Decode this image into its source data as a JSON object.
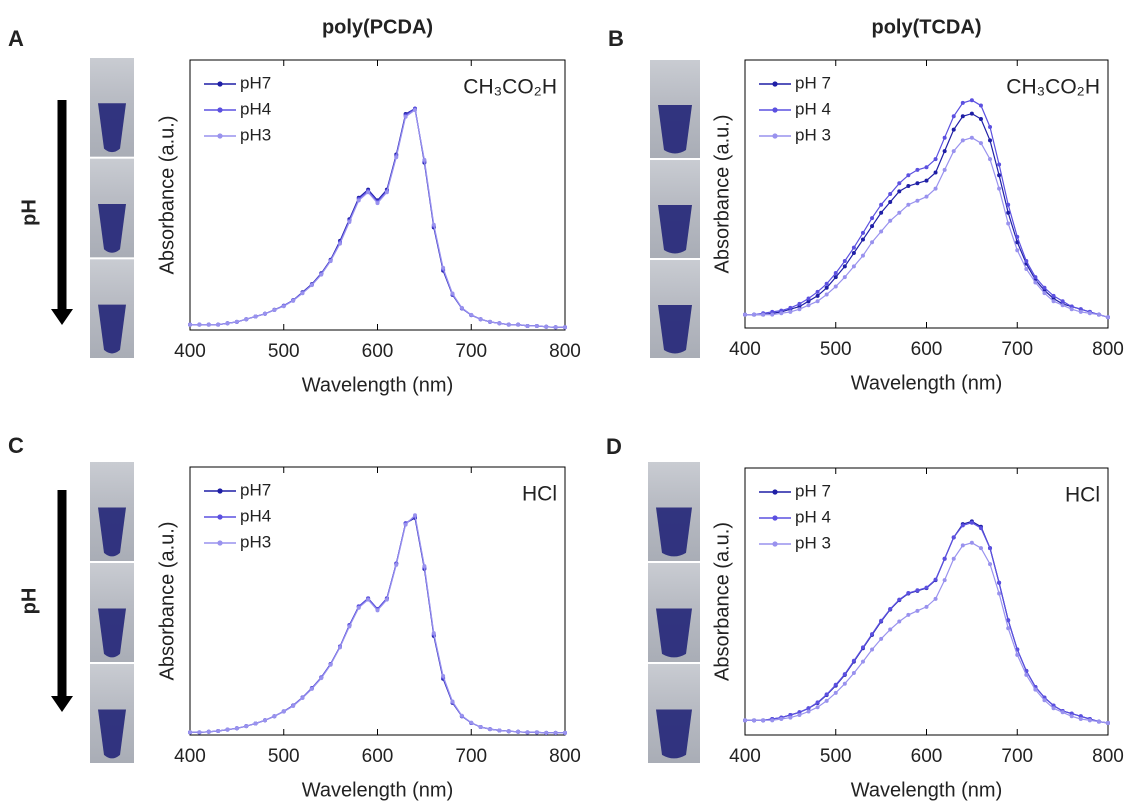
{
  "chart_data": [
    {
      "type": "line",
      "panel": "A",
      "title": "poly(PCDA)",
      "ph_label": "pH",
      "annotation": "CH₃CO₂H",
      "xlabel": "Wavelength (nm)",
      "ylabel": "Absorbance (a.u.)",
      "x": [
        400,
        410,
        420,
        430,
        440,
        450,
        460,
        470,
        480,
        490,
        500,
        510,
        520,
        530,
        540,
        550,
        560,
        570,
        580,
        590,
        600,
        610,
        620,
        630,
        640,
        650,
        660,
        670,
        680,
        690,
        700,
        710,
        720,
        730,
        740,
        750,
        760,
        770,
        780,
        790,
        800
      ],
      "xlim": [
        400,
        800
      ],
      "xticks": [
        400,
        500,
        600,
        700,
        800
      ],
      "ylim": [
        0,
        1
      ],
      "series": [
        {
          "name": "pH7",
          "color": "#1f1fa6",
          "values": [
            0.02,
            0.02,
            0.02,
            0.02,
            0.025,
            0.03,
            0.04,
            0.05,
            0.06,
            0.075,
            0.09,
            0.11,
            0.14,
            0.17,
            0.21,
            0.26,
            0.33,
            0.41,
            0.49,
            0.52,
            0.48,
            0.52,
            0.65,
            0.8,
            0.82,
            0.62,
            0.38,
            0.22,
            0.13,
            0.08,
            0.055,
            0.04,
            0.03,
            0.025,
            0.02,
            0.02,
            0.015,
            0.015,
            0.012,
            0.01,
            0.01
          ]
        },
        {
          "name": "pH4",
          "color": "#5b50e0",
          "values": [
            0.02,
            0.02,
            0.02,
            0.02,
            0.025,
            0.03,
            0.04,
            0.05,
            0.06,
            0.074,
            0.09,
            0.11,
            0.138,
            0.168,
            0.208,
            0.258,
            0.325,
            0.405,
            0.485,
            0.515,
            0.475,
            0.515,
            0.645,
            0.795,
            0.82,
            0.625,
            0.385,
            0.225,
            0.132,
            0.08,
            0.055,
            0.04,
            0.03,
            0.025,
            0.02,
            0.02,
            0.015,
            0.015,
            0.012,
            0.01,
            0.01
          ]
        },
        {
          "name": "pH3",
          "color": "#9992ee",
          "values": [
            0.02,
            0.02,
            0.02,
            0.02,
            0.025,
            0.03,
            0.04,
            0.05,
            0.06,
            0.074,
            0.088,
            0.108,
            0.136,
            0.166,
            0.205,
            0.255,
            0.32,
            0.4,
            0.48,
            0.51,
            0.47,
            0.51,
            0.64,
            0.79,
            0.815,
            0.63,
            0.39,
            0.23,
            0.135,
            0.082,
            0.056,
            0.04,
            0.03,
            0.025,
            0.02,
            0.02,
            0.015,
            0.015,
            0.012,
            0.01,
            0.01
          ]
        }
      ]
    },
    {
      "type": "line",
      "panel": "B",
      "title": "poly(TCDA)",
      "annotation": "CH₃CO₂H",
      "xlabel": "Wavelength (nm)",
      "ylabel": "Absorbance (a.u.)",
      "x": [
        400,
        410,
        420,
        430,
        440,
        450,
        460,
        470,
        480,
        490,
        500,
        510,
        520,
        530,
        540,
        550,
        560,
        570,
        580,
        590,
        600,
        610,
        620,
        630,
        640,
        650,
        660,
        670,
        680,
        690,
        700,
        710,
        720,
        730,
        740,
        750,
        760,
        770,
        780,
        790,
        800
      ],
      "xlim": [
        400,
        800
      ],
      "xticks": [
        400,
        500,
        600,
        700,
        800
      ],
      "ylim": [
        0,
        1
      ],
      "series": [
        {
          "name": "pH 7",
          "color": "#1f1fa6",
          "values": [
            0.05,
            0.05,
            0.05,
            0.055,
            0.06,
            0.07,
            0.08,
            0.1,
            0.12,
            0.15,
            0.19,
            0.23,
            0.28,
            0.33,
            0.38,
            0.43,
            0.47,
            0.51,
            0.53,
            0.54,
            0.55,
            0.58,
            0.66,
            0.74,
            0.79,
            0.8,
            0.78,
            0.7,
            0.57,
            0.43,
            0.32,
            0.24,
            0.18,
            0.14,
            0.11,
            0.09,
            0.08,
            0.07,
            0.06,
            0.05,
            0.04
          ]
        },
        {
          "name": "pH 4",
          "color": "#5b50e0",
          "values": [
            0.05,
            0.05,
            0.055,
            0.06,
            0.065,
            0.075,
            0.09,
            0.11,
            0.135,
            0.165,
            0.205,
            0.25,
            0.3,
            0.355,
            0.41,
            0.46,
            0.5,
            0.54,
            0.57,
            0.59,
            0.6,
            0.63,
            0.71,
            0.79,
            0.84,
            0.85,
            0.83,
            0.75,
            0.61,
            0.46,
            0.34,
            0.25,
            0.19,
            0.15,
            0.12,
            0.1,
            0.08,
            0.07,
            0.06,
            0.05,
            0.04
          ]
        },
        {
          "name": "pH 3",
          "color": "#9992ee",
          "values": [
            0.05,
            0.05,
            0.05,
            0.05,
            0.055,
            0.06,
            0.07,
            0.085,
            0.1,
            0.125,
            0.155,
            0.19,
            0.23,
            0.27,
            0.32,
            0.36,
            0.4,
            0.43,
            0.46,
            0.475,
            0.49,
            0.52,
            0.59,
            0.66,
            0.7,
            0.71,
            0.69,
            0.63,
            0.52,
            0.39,
            0.29,
            0.22,
            0.17,
            0.13,
            0.1,
            0.085,
            0.07,
            0.06,
            0.055,
            0.05,
            0.04
          ]
        }
      ]
    },
    {
      "type": "line",
      "panel": "C",
      "ph_label": "pH",
      "annotation": "HCl",
      "xlabel": "Wavelength (nm)",
      "ylabel": "Absorbance (a.u.)",
      "x": [
        400,
        410,
        420,
        430,
        440,
        450,
        460,
        470,
        480,
        490,
        500,
        510,
        520,
        530,
        540,
        550,
        560,
        570,
        580,
        590,
        600,
        610,
        620,
        630,
        640,
        650,
        660,
        670,
        680,
        690,
        700,
        710,
        720,
        730,
        740,
        750,
        760,
        770,
        780,
        790,
        800
      ],
      "xlim": [
        400,
        800
      ],
      "xticks": [
        400,
        500,
        600,
        700,
        800
      ],
      "ylim": [
        0,
        1
      ],
      "series": [
        {
          "name": "pH7",
          "color": "#1f1fa6",
          "values": [
            0.01,
            0.01,
            0.012,
            0.015,
            0.02,
            0.025,
            0.033,
            0.043,
            0.055,
            0.07,
            0.088,
            0.11,
            0.14,
            0.175,
            0.215,
            0.265,
            0.33,
            0.41,
            0.48,
            0.51,
            0.47,
            0.51,
            0.64,
            0.79,
            0.81,
            0.62,
            0.37,
            0.21,
            0.12,
            0.07,
            0.045,
            0.03,
            0.022,
            0.017,
            0.014,
            0.012,
            0.01,
            0.01,
            0.008,
            0.008,
            0.008
          ]
        },
        {
          "name": "pH4",
          "color": "#5b50e0",
          "values": [
            0.01,
            0.01,
            0.012,
            0.015,
            0.02,
            0.025,
            0.033,
            0.043,
            0.055,
            0.07,
            0.088,
            0.11,
            0.14,
            0.175,
            0.215,
            0.265,
            0.33,
            0.41,
            0.48,
            0.51,
            0.47,
            0.51,
            0.64,
            0.79,
            0.815,
            0.625,
            0.375,
            0.215,
            0.122,
            0.07,
            0.045,
            0.03,
            0.022,
            0.017,
            0.014,
            0.012,
            0.01,
            0.01,
            0.008,
            0.008,
            0.008
          ]
        },
        {
          "name": "pH3",
          "color": "#9992ee",
          "values": [
            0.01,
            0.01,
            0.012,
            0.015,
            0.02,
            0.025,
            0.033,
            0.043,
            0.055,
            0.07,
            0.087,
            0.108,
            0.138,
            0.172,
            0.212,
            0.262,
            0.327,
            0.405,
            0.475,
            0.505,
            0.465,
            0.505,
            0.635,
            0.785,
            0.82,
            0.63,
            0.38,
            0.22,
            0.125,
            0.072,
            0.046,
            0.03,
            0.022,
            0.017,
            0.014,
            0.012,
            0.01,
            0.01,
            0.008,
            0.008,
            0.008
          ]
        }
      ]
    },
    {
      "type": "line",
      "panel": "D",
      "annotation": "HCl",
      "xlabel": "Wavelength (nm)",
      "ylabel": "Absorbance (a.u.)",
      "x": [
        400,
        410,
        420,
        430,
        440,
        450,
        460,
        470,
        480,
        490,
        500,
        510,
        520,
        530,
        540,
        550,
        560,
        570,
        580,
        590,
        600,
        610,
        620,
        630,
        640,
        650,
        660,
        670,
        680,
        690,
        700,
        710,
        720,
        730,
        740,
        750,
        760,
        770,
        780,
        790,
        800
      ],
      "xlim": [
        400,
        800
      ],
      "xticks": [
        400,
        500,
        600,
        700,
        800
      ],
      "ylim": [
        0,
        1
      ],
      "series": [
        {
          "name": "pH 7",
          "color": "#1f1fa6",
          "values": [
            0.055,
            0.055,
            0.055,
            0.06,
            0.065,
            0.075,
            0.085,
            0.1,
            0.12,
            0.15,
            0.185,
            0.225,
            0.275,
            0.325,
            0.375,
            0.425,
            0.47,
            0.505,
            0.53,
            0.54,
            0.55,
            0.58,
            0.66,
            0.74,
            0.79,
            0.8,
            0.78,
            0.7,
            0.57,
            0.43,
            0.32,
            0.24,
            0.18,
            0.14,
            0.11,
            0.09,
            0.08,
            0.07,
            0.06,
            0.05,
            0.045
          ]
        },
        {
          "name": "pH 4",
          "color": "#5b50e0",
          "values": [
            0.055,
            0.055,
            0.055,
            0.06,
            0.065,
            0.075,
            0.085,
            0.1,
            0.122,
            0.152,
            0.188,
            0.228,
            0.278,
            0.328,
            0.378,
            0.428,
            0.472,
            0.507,
            0.532,
            0.542,
            0.552,
            0.582,
            0.66,
            0.74,
            0.785,
            0.795,
            0.775,
            0.7,
            0.57,
            0.43,
            0.32,
            0.24,
            0.18,
            0.14,
            0.11,
            0.09,
            0.08,
            0.07,
            0.06,
            0.05,
            0.045
          ]
        },
        {
          "name": "pH 3",
          "color": "#9992ee",
          "values": [
            0.055,
            0.055,
            0.055,
            0.055,
            0.06,
            0.065,
            0.075,
            0.088,
            0.104,
            0.128,
            0.158,
            0.192,
            0.232,
            0.275,
            0.32,
            0.36,
            0.395,
            0.425,
            0.45,
            0.465,
            0.48,
            0.51,
            0.58,
            0.66,
            0.71,
            0.72,
            0.7,
            0.64,
            0.53,
            0.4,
            0.3,
            0.225,
            0.17,
            0.13,
            0.1,
            0.085,
            0.07,
            0.06,
            0.055,
            0.05,
            0.045
          ]
        }
      ]
    }
  ]
}
